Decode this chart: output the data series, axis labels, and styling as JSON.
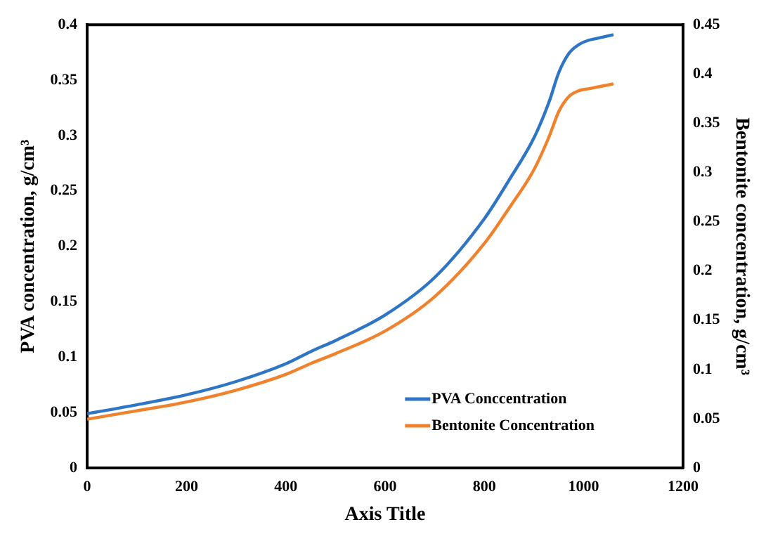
{
  "chart_data": {
    "type": "line",
    "xlabel": "Axis Title",
    "ylabel": "PVA concentration, g/cm³",
    "y2label": "Bentonite concentration, g/cm³",
    "xlim": [
      0,
      1200
    ],
    "xticks": [
      0,
      200,
      400,
      600,
      800,
      1000,
      1200
    ],
    "ylim": [
      0,
      0.4
    ],
    "yticks": [
      0,
      0.05,
      0.1,
      0.15,
      0.2,
      0.25,
      0.3,
      0.35,
      0.4
    ],
    "y2lim": [
      0,
      0.45
    ],
    "y2ticks": [
      0,
      0.05,
      0.1,
      0.15,
      0.2,
      0.25,
      0.3,
      0.35,
      0.4,
      0.45
    ],
    "grid": false,
    "legend": "bottom right",
    "marker": "none",
    "line_style": "solid",
    "series": [
      {
        "name": "PVA Conccentration",
        "color": "#2e75c6",
        "x": [
          0,
          100,
          200,
          300,
          400,
          450,
          500,
          600,
          700,
          800,
          850,
          900,
          930,
          950,
          970,
          990,
          1010,
          1030,
          1060
        ],
        "values": [
          0.049,
          0.057,
          0.066,
          0.078,
          0.094,
          0.105,
          0.115,
          0.138,
          0.172,
          0.225,
          0.26,
          0.298,
          0.33,
          0.357,
          0.374,
          0.382,
          0.386,
          0.388,
          0.391
        ]
      },
      {
        "name": "Bentonite Concentration",
        "color": "#f0822e",
        "axis": "y2",
        "x": [
          0,
          100,
          200,
          300,
          400,
          450,
          500,
          600,
          700,
          800,
          850,
          900,
          930,
          950,
          970,
          990,
          1010,
          1030,
          1060
        ],
        "values": [
          0.0495,
          0.058,
          0.067,
          0.079,
          0.095,
          0.106,
          0.116,
          0.139,
          0.174,
          0.228,
          0.264,
          0.303,
          0.336,
          0.362,
          0.377,
          0.383,
          0.385,
          0.387,
          0.39
        ]
      }
    ]
  }
}
